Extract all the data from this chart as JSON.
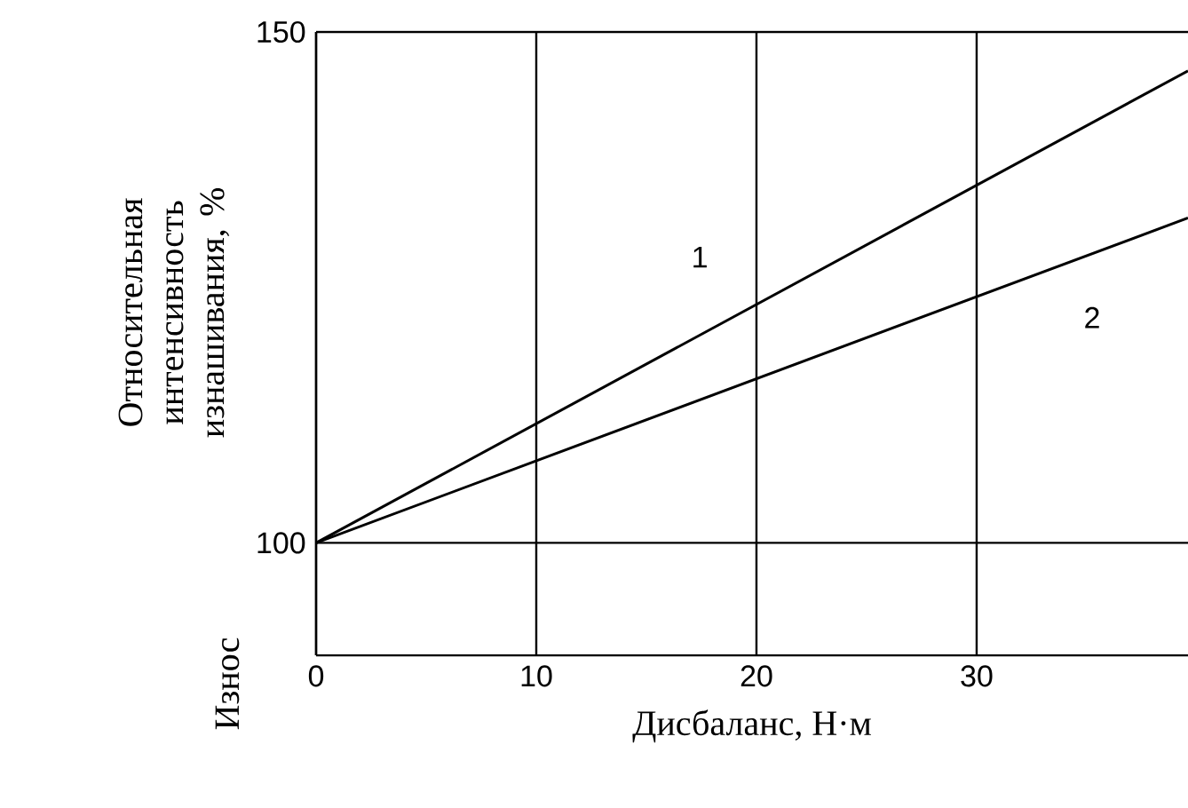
{
  "chart_data": {
    "type": "line",
    "xlabel": "Дисбаланс, Н·м",
    "ylabel": "Относительная интенсивность изнашивания, %",
    "annotations": [
      "Износ"
    ],
    "series": [
      {
        "name": "1",
        "color": "#000000",
        "values": [
          100,
          146.2
        ]
      },
      {
        "name": "2",
        "color": "#000000",
        "values": [
          100,
          131.8
        ]
      }
    ],
    "x": [
      0,
      39.6
    ],
    "xlim": [
      0,
      39.6
    ],
    "ylim": [
      89,
      150
    ],
    "xticks": [
      0,
      10,
      20,
      30
    ],
    "yticks": [
      100,
      150
    ],
    "grid": true,
    "marker": "none",
    "line_style": "solid",
    "legend": false
  }
}
